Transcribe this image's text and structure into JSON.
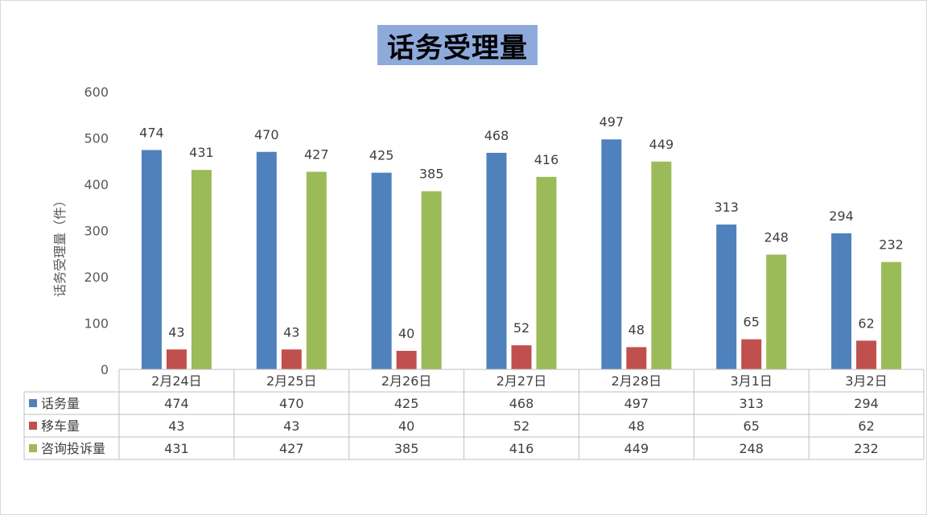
{
  "chart_data": {
    "type": "bar",
    "title": "话务受理量",
    "ylabel": "话务受理量（件）",
    "xlabel": "",
    "ylim": [
      0,
      600
    ],
    "yticks": [
      0,
      100,
      200,
      300,
      400,
      500,
      600
    ],
    "grid": false,
    "legend": "data-table",
    "categories": [
      "2月24日",
      "2月25日",
      "2月26日",
      "2月27日",
      "2月28日",
      "3月1日",
      "3月2日"
    ],
    "series": [
      {
        "name": "话务量",
        "color": "#4f81bd",
        "values": [
          474,
          470,
          425,
          468,
          497,
          313,
          294
        ]
      },
      {
        "name": "移车量",
        "color": "#c0504d",
        "values": [
          43,
          43,
          40,
          52,
          48,
          65,
          62
        ]
      },
      {
        "name": "咨询投诉量",
        "color": "#9bbb59",
        "values": [
          431,
          427,
          385,
          416,
          449,
          248,
          232
        ]
      }
    ]
  }
}
